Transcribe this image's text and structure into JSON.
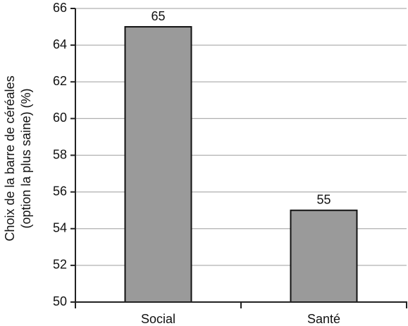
{
  "chart_data": {
    "type": "bar",
    "ylabel": [
      "Choix de la barre de céréales",
      "(option la plus saine) (%)"
    ],
    "categories": [
      "Social",
      "Santé"
    ],
    "values": [
      65,
      55
    ],
    "color": "#9a9a9a",
    "ylim": [
      50,
      66
    ],
    "yticks": [
      50,
      52,
      54,
      56,
      58,
      60,
      62,
      64,
      66
    ],
    "grid": true
  }
}
